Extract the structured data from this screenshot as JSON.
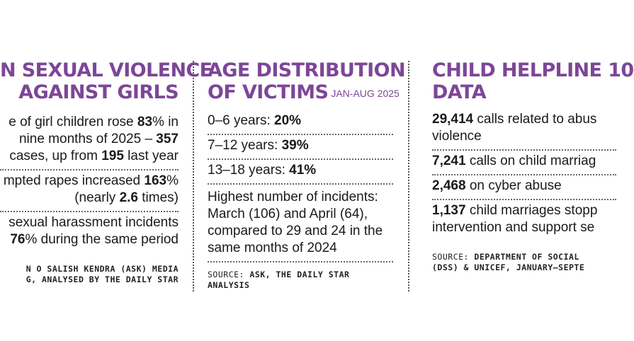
{
  "col1": {
    "heading_l1": "N SEXUAL VIOLENCE",
    "heading_l2": "AGAINST GIRLS",
    "items": [
      {
        "l1a": "e of girl children rose ",
        "l1b": "83",
        "l1c": "% in",
        "l2a": " nine months of 2025 – ",
        "l2b": "357",
        "l3a": "cases, up from ",
        "l3b": "195",
        "l3c": " last year"
      },
      {
        "l1a": "mpted rapes increased ",
        "l1b": "163",
        "l1c": "%",
        "l2a": "(nearly ",
        "l2b": "2.6",
        "l2c": " times)"
      },
      {
        "l1a": "sexual harassment incidents",
        "l2b": "76",
        "l2c": "% during the same period"
      }
    ],
    "source_l1": "N O SALISH KENDRA (ASK) MEDIA",
    "source_l2": "G, ANALYSED BY THE DAILY STAR"
  },
  "col2": {
    "heading_l1": "AGE DISTRIBUTION",
    "heading_l2": "OF VICTIMS",
    "heading_tag": "JAN-AUG 2025",
    "items": [
      {
        "label": "0–6 years: ",
        "value": "20%"
      },
      {
        "label": "7–12 years: ",
        "value": "39%"
      },
      {
        "label": "13–18 years: ",
        "value": "41%"
      }
    ],
    "note_l1": "Highest number of incidents:",
    "note_l2": "March (106) and April (64),",
    "note_l3": "compared to 29 and 24 in the",
    "note_l4": "same months of 2024",
    "source_prefix": "SOURCE: ",
    "source_l1": "ASK, THE DAILY STAR",
    "source_l2": "ANALYSIS"
  },
  "col3": {
    "heading_l1": "CHILD HELPLINE 10",
    "heading_l2": "DATA",
    "items": [
      {
        "value": "29,414",
        "text": " calls related to abus",
        "l2": "violence"
      },
      {
        "value": "7,241",
        "text": " calls on child marriag"
      },
      {
        "value": "2,468",
        "text": " on cyber abuse"
      },
      {
        "value": "1,137",
        "text": " child marriages stopp",
        "l2": "intervention and support se"
      }
    ],
    "source_prefix": "SOURCE: ",
    "source_l1": "DEPARTMENT OF SOCIAL",
    "source_l2": "(DSS) & UNICEF, JANUARY–SEPTE"
  }
}
